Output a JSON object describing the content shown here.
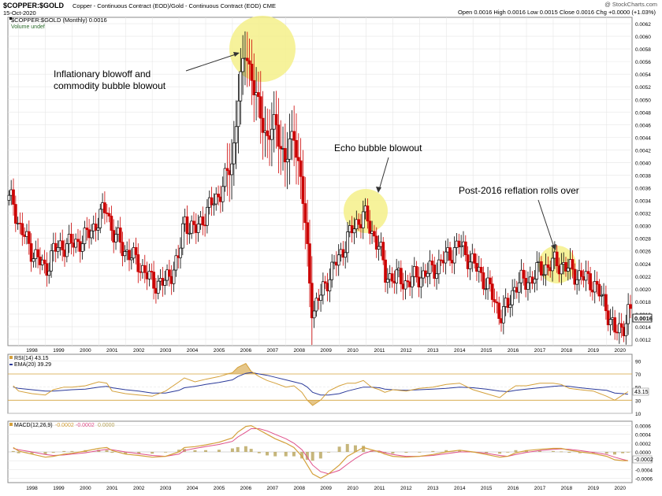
{
  "header": {
    "symbol": "$COPPER:$GOLD",
    "description": "Copper - Continuous Contract (EOD)/Gold - Continuous Contract (EOD) CME",
    "date": "15-Oct-2020",
    "watermark": "@ StockCharts.com",
    "ohlc": "Open 0.0016  High 0.0016  Low 0.0015  Close 0.0016  Chg +0.0000 (+1.03%)",
    "legend_price": "$COPPER:$GOLD (Monthly) 0.0016",
    "legend_volume": "Volume undef",
    "rsi_legend": "RSI(14) 43.15",
    "ema_legend": "EMA(20) 39.29",
    "macd_legend": "MACD(12,26,9)",
    "macd_vals": [
      "-0.0002",
      "-0.0002",
      "0.0000"
    ]
  },
  "annotations": [
    "Inflationary blowoff and",
    "commodity bubble blowout",
    "Echo bubble blowout",
    "Post-2016 reflation rolls over"
  ],
  "labels": {
    "last_price": "0.0016",
    "rsi_last": "43.15",
    "macd_last": "-0.0002"
  },
  "colors": {
    "up": "#000000",
    "down": "#cc0000",
    "highlight": "#f5f08a",
    "rsi": "#d4a03a",
    "ema": "#2b3a9a",
    "macd": "#d4a03a",
    "signal": "#e0508a",
    "hist": "#b8a45a"
  },
  "chart_data": [
    {
      "type": "candlestick",
      "title": "$COPPER:$GOLD (Monthly) 0.0016",
      "x_ticks": [
        "1998",
        "1999",
        "2000",
        "2001",
        "2002",
        "2003",
        "2004",
        "2005",
        "2006",
        "2007",
        "2008",
        "2009",
        "2010",
        "2011",
        "2012",
        "2013",
        "2014",
        "2015",
        "2016",
        "2017",
        "2018",
        "2019",
        "2020"
      ],
      "ylim": [
        0.0011,
        0.0063
      ],
      "y_ticks": [
        "0.0012",
        "0.0014",
        "0.0016",
        "0.0018",
        "0.0020",
        "0.0022",
        "0.0024",
        "0.0026",
        "0.0028",
        "0.0030",
        "0.0032",
        "0.0034",
        "0.0036",
        "0.0038",
        "0.0040",
        "0.0042",
        "0.0044",
        "0.0046",
        "0.0048",
        "0.0050",
        "0.0052",
        "0.0054",
        "0.0056",
        "0.0058",
        "0.0060",
        "0.0062"
      ],
      "x": [
        1997.8,
        1998.0,
        1998.5,
        1999.0,
        1999.3,
        1999.7,
        2000.0,
        2000.5,
        2001.0,
        2001.3,
        2001.5,
        2002.0,
        2002.5,
        2003.0,
        2003.5,
        2004.0,
        2004.2,
        2004.6,
        2005.0,
        2005.5,
        2006.0,
        2006.2,
        2006.5,
        2006.7,
        2007.0,
        2007.3,
        2007.6,
        2008.0,
        2008.3,
        2008.6,
        2008.8,
        2009.0,
        2009.3,
        2009.6,
        2010.0,
        2010.3,
        2010.6,
        2010.9,
        2011.2,
        2011.5,
        2011.7,
        2012.0,
        2012.5,
        2013.0,
        2013.5,
        2014.0,
        2014.5,
        2015.0,
        2015.5,
        2016.0,
        2016.3,
        2016.6,
        2017.0,
        2017.5,
        2018.0,
        2018.3,
        2018.6,
        2019.0,
        2019.5,
        2020.0,
        2020.3,
        2020.6,
        2020.8
      ],
      "values": [
        0.0034,
        0.003,
        0.0026,
        0.0023,
        0.0026,
        0.0027,
        0.0027,
        0.0028,
        0.0031,
        0.0033,
        0.0029,
        0.0026,
        0.0024,
        0.0021,
        0.0021,
        0.0025,
        0.0031,
        0.0029,
        0.0032,
        0.0035,
        0.004,
        0.005,
        0.0058,
        0.0054,
        0.0048,
        0.0044,
        0.0046,
        0.004,
        0.0045,
        0.0036,
        0.0026,
        0.0016,
        0.0019,
        0.0022,
        0.0025,
        0.0028,
        0.003,
        0.0032,
        0.0029,
        0.0027,
        0.0022,
        0.0022,
        0.0021,
        0.0022,
        0.0023,
        0.0025,
        0.0027,
        0.0024,
        0.0021,
        0.0016,
        0.0017,
        0.0021,
        0.0021,
        0.0023,
        0.0024,
        0.0024,
        0.0023,
        0.0022,
        0.0021,
        0.0017,
        0.0013,
        0.0014,
        0.0016
      ]
    },
    {
      "type": "line",
      "title": "RSI(14) 43.15",
      "x_ticks": [],
      "ylim": [
        10,
        100
      ],
      "y_ticks": [
        "90",
        "70",
        "50",
        "30",
        "10"
      ],
      "series": [
        {
          "name": "RSI(14) 43.15",
          "values": [
            52,
            44,
            40,
            38,
            46,
            50,
            50,
            52,
            58,
            56,
            44,
            40,
            38,
            36,
            44,
            58,
            64,
            58,
            62,
            66,
            72,
            80,
            86,
            74,
            66,
            60,
            56,
            50,
            52,
            42,
            30,
            22,
            30,
            44,
            52,
            56,
            56,
            60,
            50,
            46,
            42,
            46,
            44,
            48,
            50,
            54,
            56,
            46,
            40,
            34,
            44,
            52,
            52,
            56,
            56,
            54,
            48,
            46,
            44,
            36,
            30,
            38,
            43
          ]
        },
        {
          "name": "EMA(20) 39.29",
          "values": [
            50,
            48,
            46,
            44,
            44,
            45,
            46,
            47,
            50,
            51,
            49,
            46,
            44,
            41,
            41,
            45,
            49,
            51,
            54,
            57,
            61,
            66,
            71,
            72,
            70,
            68,
            65,
            61,
            58,
            55,
            50,
            42,
            38,
            38,
            40,
            44,
            47,
            50,
            50,
            49,
            47,
            46,
            45,
            46,
            47,
            48,
            50,
            49,
            47,
            44,
            43,
            45,
            47,
            49,
            51,
            52,
            51,
            49,
            47,
            45,
            41,
            40,
            39
          ]
        }
      ]
    },
    {
      "type": "line",
      "title": "MACD(12,26,9)",
      "x_ticks": [
        "1998",
        "1999",
        "2000",
        "2001",
        "2002",
        "2003",
        "2004",
        "2005",
        "2006",
        "2007",
        "2008",
        "2009",
        "2010",
        "2011",
        "2012",
        "2013",
        "2014",
        "2015",
        "2016",
        "2017",
        "2018",
        "2019",
        "2020"
      ],
      "ylim": [
        -0.0007,
        0.0007
      ],
      "y_ticks": [
        "0.0006",
        "0.0004",
        "0.0002",
        "0.0000",
        "-0.0002",
        "-0.0004",
        "-0.0006"
      ],
      "series": [
        {
          "name": "MACD",
          "values": [
            0.0001,
            2e-05,
            -5e-05,
            -0.00012,
            -0.0001,
            -5e-05,
            -3e-05,
            2e-05,
            8e-05,
            0.0001,
            3e-05,
            -5e-05,
            -8e-05,
            -0.00012,
            -0.0001,
            0.0,
            0.0001,
            0.00012,
            0.00016,
            0.00022,
            0.00032,
            0.00045,
            0.00058,
            0.0006,
            0.0005,
            0.0004,
            0.0003,
            0.0002,
            0.0001,
            -0.0001,
            -0.0003,
            -0.0005,
            -0.0006,
            -0.0005,
            -0.0003,
            -0.0001,
            0.0,
            0.0001,
            5e-05,
            0.0,
            -5e-05,
            -0.0001,
            -0.00012,
            -0.0001,
            -6e-05,
            0.0,
            4e-05,
            0.0,
            -6e-05,
            -0.00012,
            -0.0001,
            -2e-05,
            3e-05,
            6e-05,
            8e-05,
            8e-05,
            4e-05,
            0.0,
            -4e-05,
            -0.0001,
            -0.00018,
            -0.0002,
            -0.0002
          ]
        },
        {
          "name": "Signal",
          "values": [
            8e-05,
            5e-05,
            0.0,
            -6e-05,
            -8e-05,
            -7e-05,
            -5e-05,
            -2e-05,
            3e-05,
            6e-05,
            5e-05,
            0.0,
            -4e-05,
            -8e-05,
            -0.0001,
            -5e-05,
            3e-05,
            8e-05,
            0.00012,
            0.00017,
            0.00024,
            0.00034,
            0.00045,
            0.00053,
            0.00053,
            0.00048,
            0.0004,
            0.0003,
            0.0002,
            5e-05,
            -0.00012,
            -0.0003,
            -0.00045,
            -0.0005,
            -0.00042,
            -0.00028,
            -0.00015,
            -4e-05,
            2e-05,
            2e-05,
            -2e-05,
            -6e-05,
            -0.0001,
            -0.0001,
            -8e-05,
            -4e-05,
            0.0,
            0.0,
            -3e-05,
            -8e-05,
            -0.0001,
            -6e-05,
            -1e-05,
            3e-05,
            6e-05,
            7e-05,
            6e-05,
            3e-05,
            -1e-05,
            -6e-05,
            -0.00012,
            -0.00017,
            -0.0002
          ]
        }
      ]
    }
  ]
}
